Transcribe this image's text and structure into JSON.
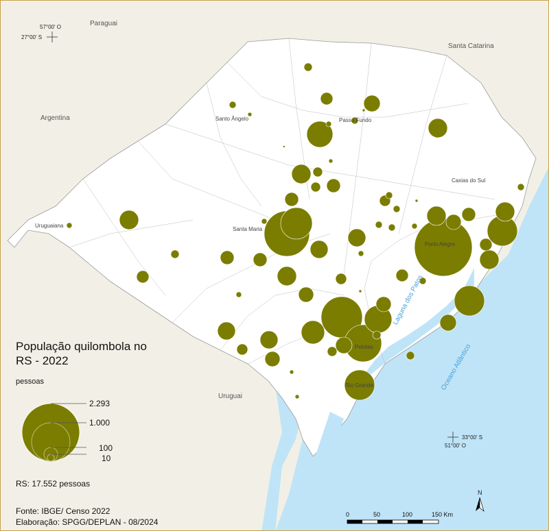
{
  "title": "População quilombola no RS - 2022",
  "unit": "pessoas",
  "total": "RS: 17.552 pessoas",
  "source": "Fonte: IBGE/ Censo 2022",
  "elaboration": "Elaboração: SPGG/DEPLAN - 08/2024",
  "neighbors": {
    "paraguai": "Paraguai",
    "argentina": "Argentina",
    "santa_catarina": "Santa Catarina",
    "uruguai": "Uruguai"
  },
  "water": {
    "laguna": "Laguna dos Patos",
    "oceano": "Oceano Atlântico"
  },
  "cities": {
    "santo_angelo": "Santo Ângelo",
    "passo_fundo": "Passo Fundo",
    "caxias": "Caxias do Sul",
    "uruguaiana": "Uruguaiana",
    "santa_maria": "Santa Maria",
    "porto_alegre": "Porto Alegre",
    "pelotas": "Pelotas",
    "rio_grande": "Rio Grande"
  },
  "coords": {
    "nw_lon": "57°00' O",
    "nw_lat": "27°00' S",
    "se_lat": "33°00' S",
    "se_lon": "51°00' O"
  },
  "legend": {
    "v1": "2.293",
    "v2": "1.000",
    "v3": "100",
    "v4": "10"
  },
  "scale": {
    "t0": "0",
    "t1": "50",
    "t2": "100",
    "t3": "150 Km"
  },
  "north": "N",
  "colors": {
    "bubble": "#7b7d00",
    "land": "#ffffff",
    "water": "#bfe4f8",
    "neighbor": "#f2f0e6",
    "border": "#c8a04a"
  },
  "map_data": {
    "type": "proportional-symbols",
    "symbols": [
      {
        "name": "Porto Alegre",
        "value": 2293
      },
      {
        "name": "Pelotas",
        "value": 1000
      },
      {
        "name": "Rio Grande",
        "value": 400
      }
    ]
  }
}
